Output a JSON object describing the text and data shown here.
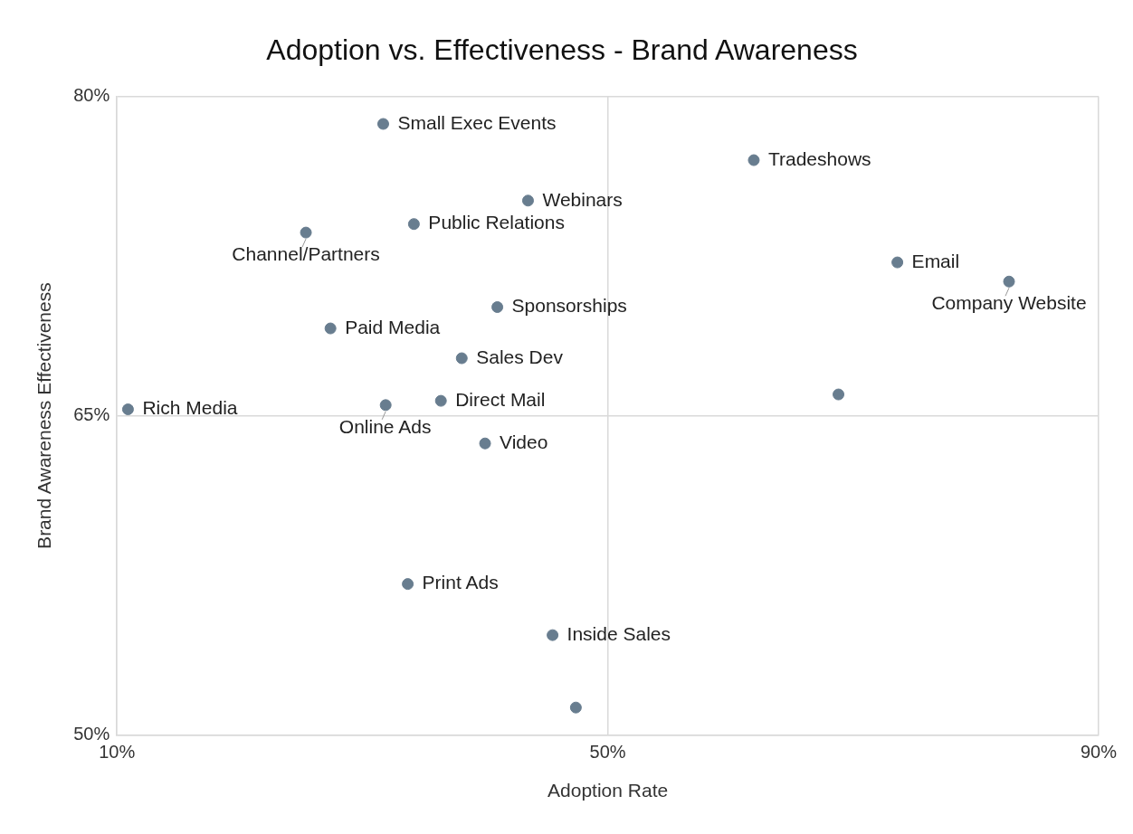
{
  "chart_data": {
    "type": "scatter",
    "title": "Adoption vs. Effectiveness - Brand Awareness",
    "xlabel": "Adoption Rate",
    "ylabel": "Brand Awareness Effectiveness",
    "xlim": [
      10,
      90
    ],
    "xticks": [
      {
        "value": 10,
        "label": "10%"
      },
      {
        "value": 50,
        "label": "50%"
      },
      {
        "value": 90,
        "label": "90%"
      }
    ],
    "ylim": [
      50,
      80
    ],
    "yticks": [
      {
        "value": 50,
        "label": "50%"
      },
      {
        "value": 65,
        "label": "65%"
      },
      {
        "value": 80,
        "label": "80%"
      }
    ],
    "grid": true,
    "legend": false,
    "marker": "circle",
    "series": [
      {
        "name": "Small Exec Events",
        "color": "#687d8f",
        "x": [
          31.7
        ],
        "values": [
          78.7
        ]
      },
      {
        "name": "Tradeshows",
        "color": "#687d8f",
        "x": [
          61.9
        ],
        "values": [
          77.0
        ]
      },
      {
        "name": "Webinars",
        "color": "#687d8f",
        "x": [
          43.5
        ],
        "values": [
          75.1
        ]
      },
      {
        "name": "Public Relations",
        "color": "#687d8f",
        "x": [
          34.2
        ],
        "values": [
          74.0
        ]
      },
      {
        "name": "Channel/Partners",
        "color": "#687d8f",
        "x": [
          25.4
        ],
        "values": [
          73.6
        ]
      },
      {
        "name": "Email",
        "color": "#687d8f",
        "x": [
          73.6
        ],
        "values": [
          72.2
        ]
      },
      {
        "name": "Company Website",
        "color": "#687d8f",
        "x": [
          82.7
        ],
        "values": [
          71.3
        ]
      },
      {
        "name": "Sponsorships",
        "color": "#687d8f",
        "x": [
          41.0
        ],
        "values": [
          70.1
        ]
      },
      {
        "name": "Paid Media",
        "color": "#687d8f",
        "x": [
          27.4
        ],
        "values": [
          69.1
        ]
      },
      {
        "name": "Sales Dev",
        "color": "#687d8f",
        "x": [
          38.1
        ],
        "values": [
          67.7
        ]
      },
      {
        "color": "#687d8f",
        "x": [
          68.8
        ],
        "values": [
          66.0
        ]
      },
      {
        "name": "Direct Mail",
        "color": "#687d8f",
        "x": [
          36.4
        ],
        "values": [
          65.7
        ]
      },
      {
        "name": "Online Ads",
        "color": "#687d8f",
        "x": [
          31.9
        ],
        "values": [
          65.5
        ]
      },
      {
        "name": "Rich Media",
        "color": "#687d8f",
        "x": [
          10.9
        ],
        "values": [
          65.3
        ]
      },
      {
        "name": "Video",
        "color": "#687d8f",
        "x": [
          40.0
        ],
        "values": [
          63.7
        ]
      },
      {
        "name": "Print Ads",
        "color": "#687d8f",
        "x": [
          33.7
        ],
        "values": [
          57.1
        ]
      },
      {
        "name": "Inside Sales",
        "color": "#687d8f",
        "x": [
          45.5
        ],
        "values": [
          54.7
        ]
      },
      {
        "color": "#687d8f",
        "x": [
          47.4
        ],
        "values": [
          51.3
        ]
      }
    ]
  }
}
